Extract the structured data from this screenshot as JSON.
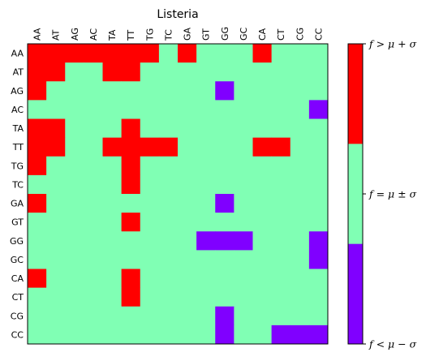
{
  "chart_data": {
    "type": "heatmap",
    "title": "Listeria",
    "x_labels": [
      "AA",
      "AT",
      "AG",
      "AC",
      "TA",
      "TT",
      "TG",
      "TC",
      "GA",
      "GT",
      "GG",
      "GC",
      "CA",
      "CT",
      "CG",
      "CC"
    ],
    "y_labels": [
      "AA",
      "AT",
      "AG",
      "AC",
      "TA",
      "TT",
      "TG",
      "TC",
      "GA",
      "GT",
      "GG",
      "GC",
      "CA",
      "CT",
      "CG",
      "CC"
    ],
    "levels": [
      -1,
      0,
      1
    ],
    "grid": [
      [
        1,
        1,
        1,
        1,
        1,
        1,
        1,
        0,
        1,
        0,
        0,
        0,
        1,
        0,
        0,
        0
      ],
      [
        1,
        1,
        0,
        0,
        1,
        1,
        0,
        0,
        0,
        0,
        0,
        0,
        0,
        0,
        0,
        0
      ],
      [
        1,
        0,
        0,
        0,
        0,
        0,
        0,
        0,
        0,
        0,
        -1,
        0,
        0,
        0,
        0,
        0
      ],
      [
        0,
        0,
        0,
        0,
        0,
        0,
        0,
        0,
        0,
        0,
        0,
        0,
        0,
        0,
        0,
        -1
      ],
      [
        1,
        1,
        0,
        0,
        0,
        1,
        0,
        0,
        0,
        0,
        0,
        0,
        0,
        0,
        0,
        0
      ],
      [
        1,
        1,
        0,
        0,
        1,
        1,
        1,
        1,
        0,
        0,
        0,
        0,
        1,
        1,
        0,
        0
      ],
      [
        1,
        0,
        0,
        0,
        0,
        1,
        0,
        0,
        0,
        0,
        0,
        0,
        0,
        0,
        0,
        0
      ],
      [
        0,
        0,
        0,
        0,
        0,
        1,
        0,
        0,
        0,
        0,
        0,
        0,
        0,
        0,
        0,
        0
      ],
      [
        1,
        0,
        0,
        0,
        0,
        0,
        0,
        0,
        0,
        0,
        -1,
        0,
        0,
        0,
        0,
        0
      ],
      [
        0,
        0,
        0,
        0,
        0,
        1,
        0,
        0,
        0,
        0,
        0,
        0,
        0,
        0,
        0,
        0
      ],
      [
        0,
        0,
        0,
        0,
        0,
        0,
        0,
        0,
        0,
        -1,
        -1,
        -1,
        0,
        0,
        0,
        -1
      ],
      [
        0,
        0,
        0,
        0,
        0,
        0,
        0,
        0,
        0,
        0,
        0,
        0,
        0,
        0,
        0,
        -1
      ],
      [
        1,
        0,
        0,
        0,
        0,
        1,
        0,
        0,
        0,
        0,
        0,
        0,
        0,
        0,
        0,
        0
      ],
      [
        0,
        0,
        0,
        0,
        0,
        1,
        0,
        0,
        0,
        0,
        0,
        0,
        0,
        0,
        0,
        0
      ],
      [
        0,
        0,
        0,
        0,
        0,
        0,
        0,
        0,
        0,
        0,
        -1,
        0,
        0,
        0,
        0,
        0
      ],
      [
        0,
        0,
        0,
        0,
        0,
        0,
        0,
        0,
        0,
        0,
        -1,
        0,
        0,
        -1,
        -1,
        -1
      ]
    ],
    "colors": {
      "low": "#8000ff",
      "mid": "#80ffb4",
      "high": "#ff0000"
    },
    "colorbar": {
      "labels": [
        "f > μ + σ",
        "f = μ ± σ",
        "f < μ − σ"
      ]
    }
  }
}
